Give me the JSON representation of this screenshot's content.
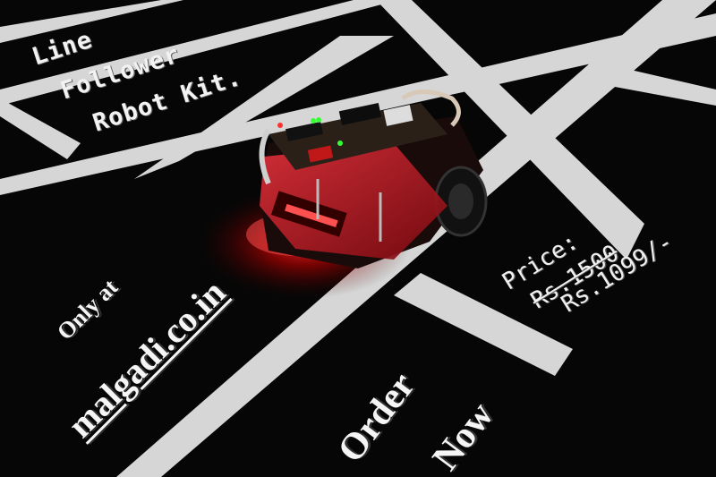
{
  "title_lines": [
    "Line",
    "Follower",
    "Robot Kit."
  ],
  "promo": {
    "only_at": "Only at",
    "website": "malgadi.co.in",
    "order": "Order",
    "now": "Now"
  },
  "price": {
    "label": "Price:",
    "old_price": "Rs.1500",
    "new_price": "Rs.1099/-"
  },
  "colors": {
    "background": "#050505",
    "track_lines": "#d9d9d9",
    "robot_chassis": "#c8141c",
    "led_glow": "#ff2a2a",
    "text": "#f2f2f2"
  }
}
